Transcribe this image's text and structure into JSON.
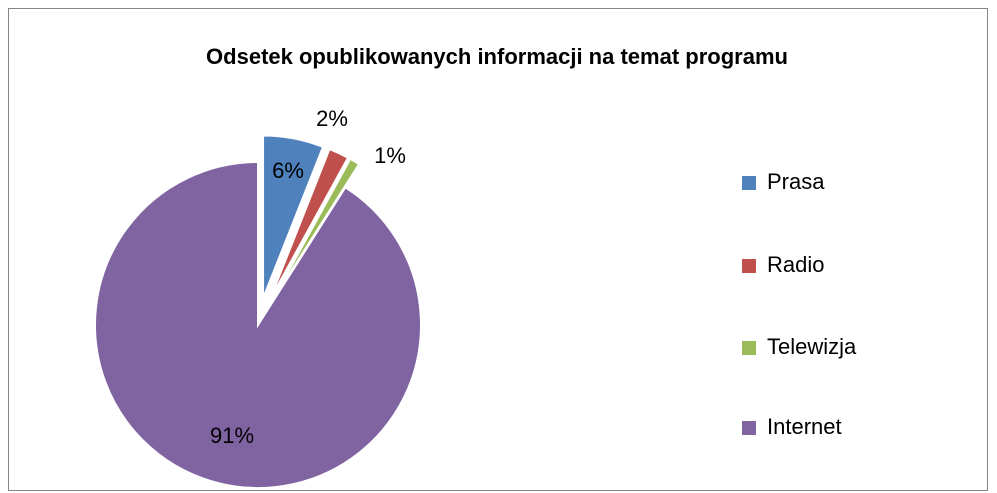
{
  "chart_data": {
    "type": "pie",
    "title": "Odsetek opublikowanych informacji na temat programu",
    "categories": [
      "Prasa",
      "Radio",
      "Telewizja",
      "Internet"
    ],
    "values": [
      6,
      2,
      1,
      91
    ],
    "value_labels": [
      "6%",
      "2%",
      "1%",
      "91%"
    ],
    "colors": [
      "#4f81bd",
      "#c0504d",
      "#9bbb59",
      "#8064a2"
    ],
    "legend": "right"
  }
}
